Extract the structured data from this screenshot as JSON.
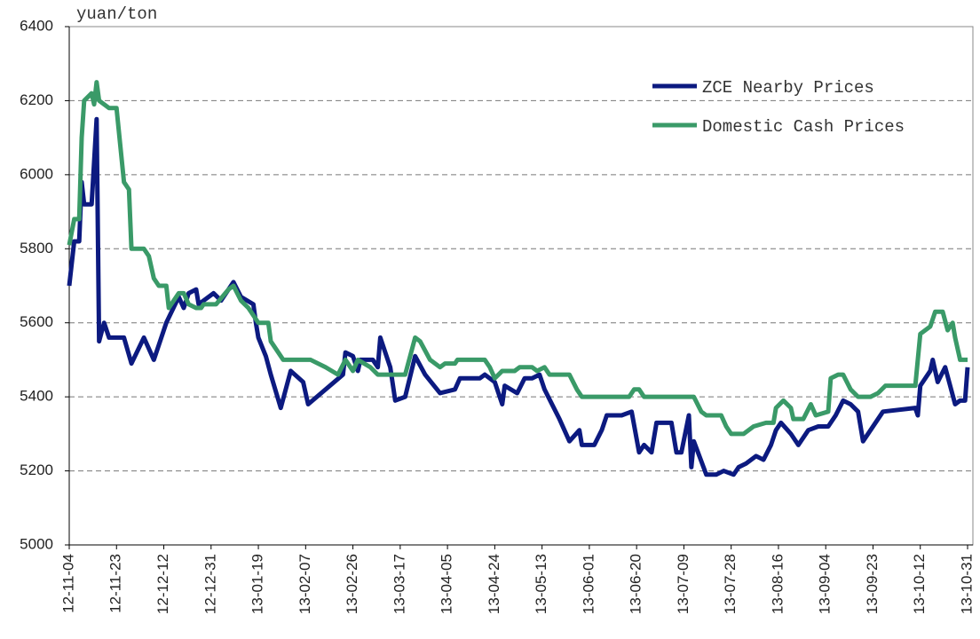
{
  "chart_data": {
    "type": "line",
    "y_label": "yuan/ton",
    "xlim": [
      "12-11-04",
      "13-10-31"
    ],
    "xticks": [
      "12-11-04",
      "12-11-23",
      "12-12-12",
      "12-12-31",
      "13-01-19",
      "13-02-07",
      "13-02-26",
      "13-03-17",
      "13-04-05",
      "13-04-24",
      "13-05-13",
      "13-06-01",
      "13-06-20",
      "13-07-09",
      "13-07-28",
      "13-08-16",
      "13-09-04",
      "13-09-23",
      "13-10-12",
      "13-10-31"
    ],
    "ylim": [
      5000,
      6400
    ],
    "yticks": [
      5000,
      5200,
      5400,
      5600,
      5800,
      6000,
      6200,
      6400
    ],
    "grid": true,
    "legend": "upper right",
    "series": [
      {
        "name": "ZCE Nearby Prices",
        "color": "#0c1a80",
        "x": [
          "12-11-04",
          "12-11-06",
          "12-11-08",
          "12-11-09",
          "12-11-10",
          "12-11-13",
          "12-11-15",
          "12-11-16",
          "12-11-18",
          "12-11-20",
          "12-11-26",
          "12-11-29",
          "12-12-04",
          "12-12-08",
          "12-12-11",
          "12-12-13",
          "12-12-18",
          "12-12-20",
          "12-12-22",
          "12-12-25",
          "12-12-26",
          "13-01-01",
          "13-01-04",
          "13-01-09",
          "13-01-12",
          "13-01-17",
          "13-01-18",
          "13-01-19",
          "13-01-22",
          "13-01-24",
          "13-01-28",
          "13-02-01",
          "13-02-06",
          "13-02-08",
          "13-02-22",
          "13-02-23",
          "13-02-26",
          "13-02-28",
          "13-03-01",
          "13-03-06",
          "13-03-08",
          "13-03-09",
          "13-03-13",
          "13-03-15",
          "13-03-19",
          "13-03-23",
          "13-03-27",
          "13-04-02",
          "13-04-08",
          "13-04-10",
          "13-04-18",
          "13-04-20",
          "13-04-24",
          "13-04-26",
          "13-04-27",
          "13-04-28",
          "13-05-03",
          "13-05-06",
          "13-05-09",
          "13-05-12",
          "13-05-14",
          "13-05-17",
          "13-05-20",
          "13-05-24",
          "13-05-28",
          "13-05-29",
          "13-06-03",
          "13-06-06",
          "13-06-08",
          "13-06-14",
          "13-06-18",
          "13-06-21",
          "13-06-23",
          "13-06-26",
          "13-06-28",
          "13-07-04",
          "13-07-06",
          "13-07-08",
          "13-07-11",
          "13-07-12",
          "13-07-13",
          "13-07-18",
          "13-07-22",
          "13-07-25",
          "13-07-29",
          "13-07-31",
          "13-08-03",
          "13-08-07",
          "13-08-10",
          "13-08-13",
          "13-08-15",
          "13-08-17",
          "13-08-21",
          "13-08-24",
          "13-08-28",
          "13-09-01",
          "13-09-05",
          "13-09-08",
          "13-09-11",
          "13-09-14",
          "13-09-17",
          "13-09-19",
          "13-09-25",
          "13-09-27",
          "13-10-10",
          "13-10-11",
          "13-10-12",
          "13-10-16",
          "13-10-17",
          "13-10-19",
          "13-10-22",
          "13-10-26",
          "13-10-28",
          "13-10-30",
          "13-10-31"
        ],
        "values": [
          5700,
          5820,
          5820,
          5980,
          5920,
          5920,
          6150,
          5550,
          5600,
          5560,
          5560,
          5490,
          5560,
          5500,
          5560,
          5600,
          5670,
          5640,
          5680,
          5690,
          5650,
          5680,
          5660,
          5710,
          5670,
          5650,
          5600,
          5560,
          5510,
          5460,
          5370,
          5470,
          5440,
          5380,
          5460,
          5520,
          5510,
          5470,
          5500,
          5500,
          5480,
          5560,
          5480,
          5390,
          5400,
          5510,
          5460,
          5410,
          5420,
          5450,
          5450,
          5460,
          5440,
          5400,
          5380,
          5430,
          5410,
          5450,
          5450,
          5460,
          5420,
          5380,
          5340,
          5280,
          5310,
          5270,
          5270,
          5310,
          5350,
          5350,
          5360,
          5250,
          5270,
          5250,
          5330,
          5330,
          5250,
          5250,
          5350,
          5210,
          5280,
          5190,
          5190,
          5200,
          5190,
          5210,
          5220,
          5240,
          5230,
          5270,
          5310,
          5330,
          5300,
          5270,
          5310,
          5320,
          5320,
          5350,
          5390,
          5380,
          5360,
          5280,
          5340,
          5360,
          5370,
          5350,
          5430,
          5470,
          5500,
          5440,
          5480,
          5380,
          5390,
          5390,
          5480
        ]
      },
      {
        "name": "Domestic Cash Prices",
        "color": "#3a9a68",
        "x": [
          "12-11-04",
          "12-11-06",
          "12-11-08",
          "12-11-09",
          "12-11-10",
          "12-11-13",
          "12-11-14",
          "12-11-15",
          "12-11-16",
          "12-11-20",
          "12-11-23",
          "12-11-26",
          "12-11-28",
          "12-11-29",
          "12-12-04",
          "12-12-06",
          "12-12-08",
          "12-12-10",
          "12-12-13",
          "12-12-14",
          "12-12-18",
          "12-12-20",
          "12-12-22",
          "12-12-25",
          "12-12-27",
          "12-12-28",
          "13-01-02",
          "13-01-07",
          "13-01-09",
          "13-01-12",
          "13-01-15",
          "13-01-19",
          "13-01-23",
          "13-01-24",
          "13-01-29",
          "13-02-09",
          "13-02-15",
          "13-02-20",
          "13-02-23",
          "13-02-26",
          "13-02-28",
          "13-03-05",
          "13-03-08",
          "13-03-19",
          "13-03-23",
          "13-03-25",
          "13-03-29",
          "13-04-02",
          "13-04-04",
          "13-04-08",
          "13-04-09",
          "13-04-20",
          "13-04-22",
          "13-04-24",
          "13-04-27",
          "13-05-02",
          "13-05-04",
          "13-05-09",
          "13-05-11",
          "13-05-14",
          "13-05-16",
          "13-05-24",
          "13-05-27",
          "13-05-29",
          "13-06-17",
          "13-06-19",
          "13-06-21",
          "13-06-23",
          "13-07-13",
          "13-07-16",
          "13-07-18",
          "13-07-24",
          "13-07-26",
          "13-07-28",
          "13-08-02",
          "13-08-06",
          "13-08-11",
          "13-08-14",
          "13-08-15",
          "13-08-18",
          "13-08-21",
          "13-08-22",
          "13-08-26",
          "13-08-29",
          "13-08-31",
          "13-09-05",
          "13-09-06",
          "13-09-09",
          "13-09-11",
          "13-09-14",
          "13-09-17",
          "13-09-22",
          "13-09-25",
          "13-09-28",
          "13-10-10",
          "13-10-12",
          "13-10-16",
          "13-10-18",
          "13-10-21",
          "13-10-23",
          "13-10-25",
          "13-10-26",
          "13-10-28",
          "13-10-31"
        ],
        "values": [
          5810,
          5880,
          5880,
          6100,
          6200,
          6220,
          6190,
          6250,
          6200,
          6180,
          6180,
          5980,
          5960,
          5800,
          5800,
          5780,
          5720,
          5700,
          5700,
          5640,
          5680,
          5680,
          5650,
          5640,
          5640,
          5650,
          5650,
          5690,
          5700,
          5660,
          5640,
          5600,
          5600,
          5550,
          5500,
          5500,
          5480,
          5460,
          5500,
          5470,
          5500,
          5480,
          5460,
          5460,
          5560,
          5550,
          5500,
          5480,
          5490,
          5490,
          5500,
          5500,
          5480,
          5450,
          5470,
          5470,
          5480,
          5480,
          5470,
          5480,
          5460,
          5460,
          5420,
          5400,
          5400,
          5420,
          5420,
          5400,
          5400,
          5360,
          5350,
          5350,
          5320,
          5300,
          5300,
          5320,
          5330,
          5330,
          5370,
          5390,
          5370,
          5340,
          5340,
          5380,
          5350,
          5360,
          5450,
          5460,
          5460,
          5420,
          5400,
          5400,
          5410,
          5430,
          5430,
          5570,
          5590,
          5630,
          5630,
          5580,
          5600,
          5560,
          5500,
          5500
        ]
      }
    ]
  }
}
